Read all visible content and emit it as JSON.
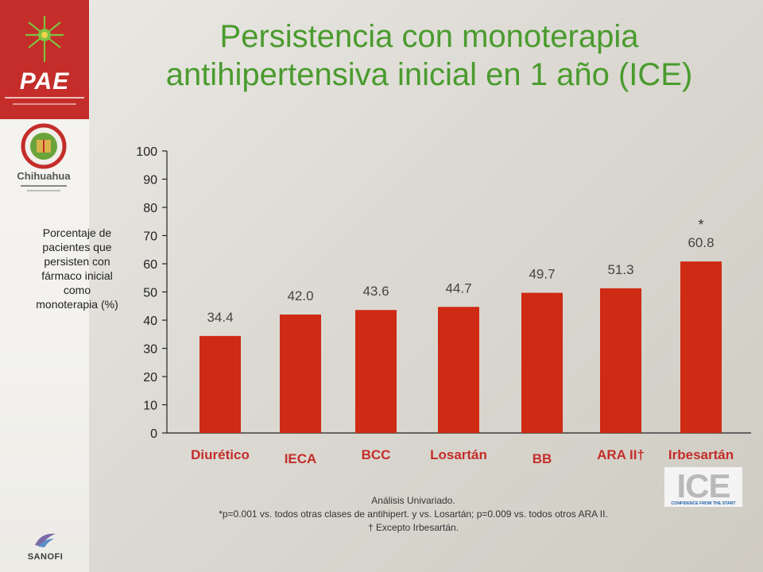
{
  "title_line1": "Persistencia con monoterapia",
  "title_line2": "antihipertensiva inicial en 1 año (ICE)",
  "ylabel_lines": [
    "Porcentaje de",
    "pacientes que",
    "persisten con",
    "fármaco inicial",
    "como",
    "monoterapia (%)"
  ],
  "branding": {
    "pae": "PAE",
    "chihuahua": "Chihuahua",
    "sanofi": "SANOFI",
    "ice": "ICE",
    "ice_tagline": "CONFIDENCE FROM THE START"
  },
  "footnotes": {
    "line1": "Análisis Univariado.",
    "line2": "*p=0.001 vs. todos otras clases de antihipert. y vs. Losartán; p=0.009 vs. todos otros ARA II.",
    "line3": "† Excepto Irbesartán."
  },
  "colors": {
    "bar": "#cf2a14",
    "title": "#4a9b2e",
    "pae_red": "#c42d2a"
  },
  "chart_data": {
    "type": "bar",
    "categories": [
      "Diurético",
      "IECA",
      "BCC",
      "Losartán",
      "BB",
      "ARA II†",
      "Irbesartán"
    ],
    "values": [
      34.4,
      42.0,
      43.6,
      44.7,
      49.7,
      51.3,
      60.8
    ],
    "value_labels": [
      "34.4",
      "42.0",
      "43.6",
      "44.7",
      "49.7",
      "51.3",
      "60.8"
    ],
    "annotation": {
      "category": "Irbesartán",
      "text": "*"
    },
    "ylim": [
      0,
      100
    ],
    "yticks": [
      0,
      10,
      20,
      30,
      40,
      50,
      60,
      70,
      80,
      90,
      100
    ],
    "grid": false
  }
}
